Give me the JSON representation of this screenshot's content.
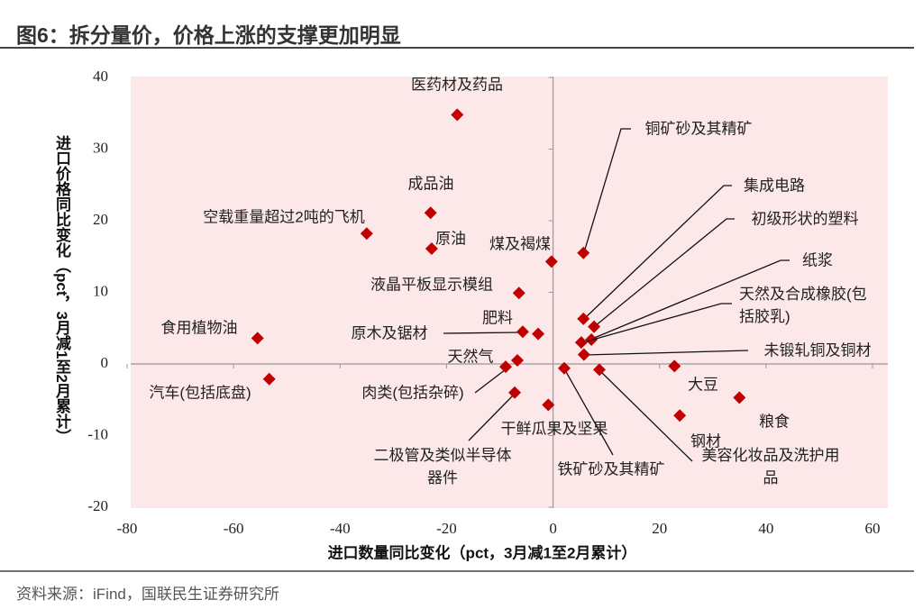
{
  "title": "图6：拆分量价，价格上涨的支撑更加明显",
  "source": "资料来源：iFind，国联民生证券研究所",
  "chart_data": {
    "type": "scatter",
    "xlabel": "进口数量同比变化（pct，3月减1至2月累计）",
    "ylabel": "进口价格同比变化（pct，3月减1至2月累计）",
    "color": "#c00000",
    "xlim": [
      -80,
      60
    ],
    "ylim": [
      -20,
      40
    ],
    "xticks": [
      -80,
      -60,
      -40,
      -20,
      0,
      20,
      40,
      60
    ],
    "yticks": [
      -20,
      -10,
      0,
      10,
      20,
      30,
      40
    ],
    "labels": [
      "医药材及药品",
      "成品油",
      "空载重量超过2吨的飞机",
      "原油",
      "煤及褐煤",
      "液晶平板显示模组",
      "食用植物油",
      "汽车(包括底盘)",
      "肥料",
      "原木及锯材",
      "天然气",
      "肉类(包括杂碎)",
      "二极管及类似半导体器件",
      "干鲜瓜果及坚果",
      "铁矿砂及其精矿",
      "美容化妆品及洗护用品",
      "铜矿砂及其精矿",
      "集成电路",
      "初级形状的塑料",
      "纸浆",
      "天然及合成橡胶(包括胶乳)",
      "未锻轧铜及铜材",
      "大豆",
      "钢材",
      "粮食"
    ],
    "x": [
      -18.0,
      -23.0,
      -35.0,
      -22.8,
      -0.3,
      -6.4,
      -55.5,
      -53.3,
      -2.8,
      -5.7,
      -6.7,
      -8.9,
      -7.2,
      -0.9,
      2.1,
      8.7,
      5.7,
      5.7,
      7.7,
      7.2,
      5.3,
      5.8,
      22.8,
      23.8,
      35.0
    ],
    "values": [
      34.8,
      21.1,
      18.2,
      16.1,
      14.3,
      9.9,
      3.6,
      -2.1,
      4.2,
      4.5,
      0.5,
      -0.4,
      -4.0,
      -5.7,
      -0.6,
      -0.8,
      15.5,
      6.3,
      5.2,
      3.4,
      3.0,
      1.3,
      -0.3,
      -7.2,
      -4.7
    ]
  }
}
